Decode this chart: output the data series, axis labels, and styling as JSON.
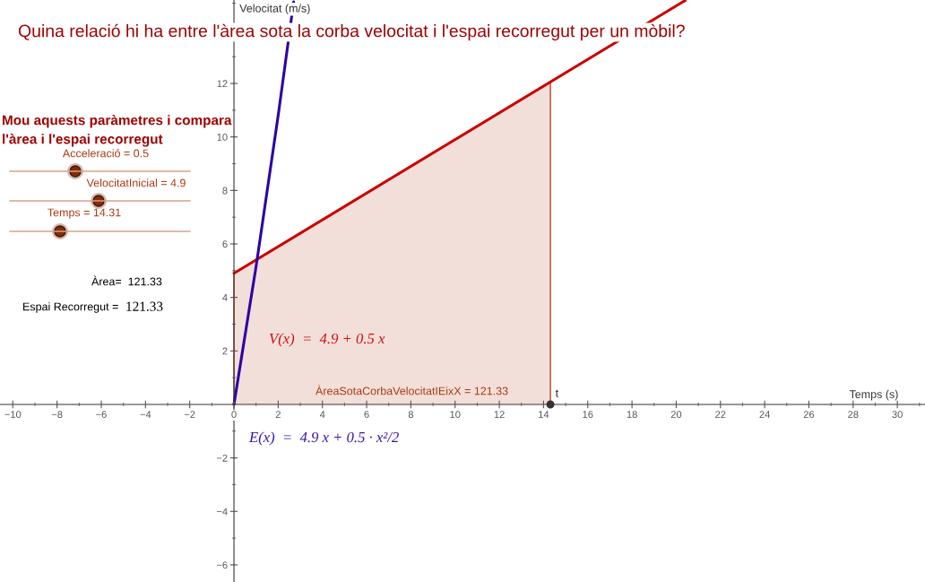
{
  "chart_data": {
    "type": "line",
    "title": "Quina relació hi ha entre l'àrea sota la corba velocitat i l'espai recorregut per un mòbil?",
    "xlabel": "Temps (s)",
    "ylabel": "Velocitat (m/s)",
    "xlim": [
      -10.58,
      31.25
    ],
    "ylim": [
      -6.64,
      15.12
    ],
    "xticks": [
      -10,
      -8,
      -6,
      -4,
      -2,
      {
        "value": 0,
        "label": "0"
      },
      2,
      4,
      6,
      8,
      10,
      12,
      14,
      16,
      18,
      20,
      22,
      24,
      26,
      28,
      30
    ],
    "yticks": [
      -6,
      -4,
      -2,
      2,
      4,
      6,
      8,
      10,
      12
    ],
    "grid": false,
    "legend": false,
    "series": [
      {
        "type": "area",
        "color": "#b5441c",
        "x": [
          0,
          14.31
        ],
        "values": [
          4.9,
          12.06
        ]
      },
      {
        "color": "#cc0000",
        "x": [
          0,
          20.4
        ],
        "values": [
          4.9,
          15.1
        ]
      },
      {
        "color": "#2b00a6",
        "x": [
          0,
          1,
          2,
          2.7
        ],
        "values": [
          0,
          5.15,
          10.8,
          15.05
        ]
      },
      {
        "type": "scatter",
        "name": "t",
        "color": "#333333",
        "x": [
          14.31
        ],
        "values": [
          0
        ]
      }
    ],
    "annotations": [
      "Mou aquests paràmetres i compara\nl'àrea i l'espai recorregut",
      "Acceleració = 0.5",
      "VelocitatInicial = 4.9",
      "Temps = 14.31",
      "Àrea=  121.33",
      "Espai Recorregut =",
      "121.33",
      "V(x)  =  4.9 + 0.5 x",
      "E(x)  =  4.9 x + 0.5 · x²/2",
      "ÀreaSotaCorbaVelocitatIEixX = 121.33"
    ]
  }
}
